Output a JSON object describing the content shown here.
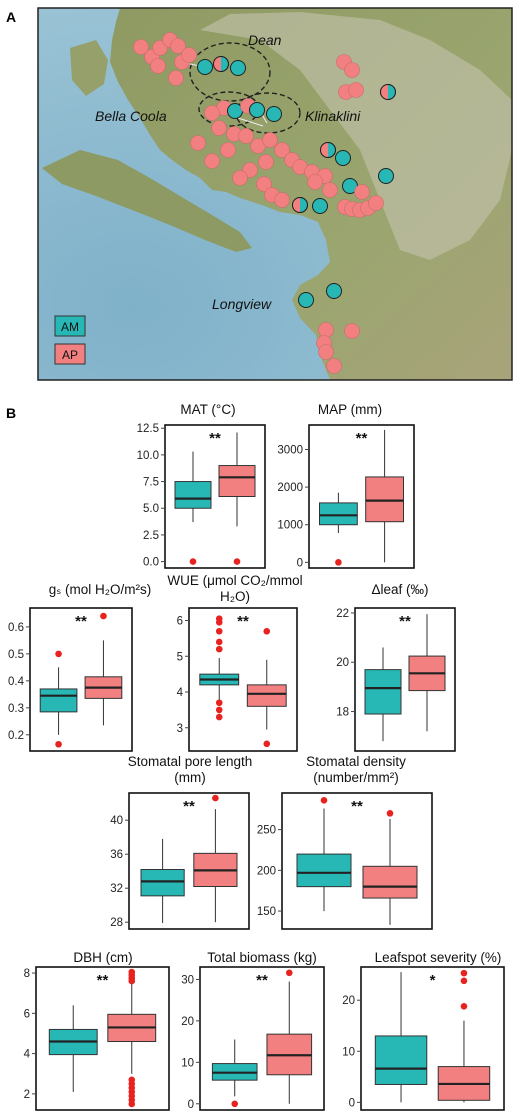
{
  "panel_a": {
    "label": "A",
    "regions": [
      "Dean",
      "Bella Coola",
      "Klinaklini",
      "Longview"
    ],
    "legend": [
      {
        "label": "AM",
        "color": "#27b8b6"
      },
      {
        "label": "AP",
        "color": "#f28080"
      }
    ]
  },
  "panel_b": {
    "label": "B"
  },
  "colors": {
    "am": "#27b8b6",
    "ap": "#f28080",
    "outlier": "#e8231f",
    "ocean": "#86b7cd",
    "land": "#8f9a63"
  },
  "chart_data": [
    {
      "type": "box",
      "title": "MAT (°C)",
      "significance": "**",
      "ylim": [
        -0.6,
        12.8
      ],
      "yticks": [
        0.0,
        2.5,
        5.0,
        7.5,
        10.0,
        12.5
      ],
      "ytick_labels": [
        "0.0",
        "2.5",
        "5.0",
        "7.5",
        "10.0",
        "12.5"
      ],
      "series": [
        {
          "name": "AM",
          "whisker_low": 3.7,
          "q1": 5.0,
          "median": 5.9,
          "q3": 7.5,
          "whisker_high": 10.3,
          "outliers": [
            0.0
          ]
        },
        {
          "name": "AP",
          "whisker_low": 3.3,
          "q1": 6.1,
          "median": 7.9,
          "q3": 9.0,
          "whisker_high": 12.1,
          "outliers": [
            0.0
          ]
        }
      ]
    },
    {
      "type": "box",
      "title": "MAP (mm)",
      "significance": "**",
      "ylim": [
        -150,
        3650
      ],
      "yticks": [
        0,
        1000,
        2000,
        3000
      ],
      "ytick_labels": [
        "0",
        "1000",
        "2000",
        "3000"
      ],
      "series": [
        {
          "name": "AM",
          "whisker_low": 780,
          "q1": 1000,
          "median": 1250,
          "q3": 1580,
          "whisker_high": 1850,
          "outliers": [
            0
          ]
        },
        {
          "name": "AP",
          "whisker_low": 0,
          "q1": 1080,
          "median": 1640,
          "q3": 2270,
          "whisker_high": 3520,
          "outliers": []
        }
      ]
    },
    {
      "type": "box",
      "title": "gₛ (mol H₂O/m²s)",
      "significance": "**",
      "ylim": [
        0.14,
        0.67
      ],
      "yticks": [
        0.2,
        0.3,
        0.4,
        0.5,
        0.6
      ],
      "ytick_labels": [
        "0.2",
        "0.3",
        "0.4",
        "0.5",
        "0.6"
      ],
      "series": [
        {
          "name": "AM",
          "whisker_low": 0.2,
          "q1": 0.285,
          "median": 0.345,
          "q3": 0.37,
          "whisker_high": 0.45,
          "outliers": [
            0.165,
            0.5
          ]
        },
        {
          "name": "AP",
          "whisker_low": 0.235,
          "q1": 0.335,
          "median": 0.375,
          "q3": 0.415,
          "whisker_high": 0.55,
          "outliers": [
            0.64
          ]
        }
      ]
    },
    {
      "type": "box",
      "title": "WUE (μmol CO₂/mmol H₂O)",
      "significance": "**",
      "ylim": [
        2.35,
        6.35
      ],
      "yticks": [
        3,
        4,
        5,
        6
      ],
      "ytick_labels": [
        "3",
        "4",
        "5",
        "6"
      ],
      "series": [
        {
          "name": "AM",
          "whisker_low": 3.75,
          "q1": 4.2,
          "median": 4.35,
          "q3": 4.5,
          "whisker_high": 4.95,
          "outliers": [
            3.3,
            3.5,
            3.7,
            5.2,
            5.4,
            5.7,
            5.95,
            6.05
          ]
        },
        {
          "name": "AP",
          "whisker_low": 2.95,
          "q1": 3.6,
          "median": 3.95,
          "q3": 4.2,
          "whisker_high": 4.9,
          "outliers": [
            2.55,
            5.7
          ]
        }
      ]
    },
    {
      "type": "box",
      "title": "Δleaf (‰)",
      "significance": "**",
      "ylim": [
        16.4,
        22.2
      ],
      "yticks": [
        18,
        20,
        22
      ],
      "ytick_labels": [
        "18",
        "20",
        "22"
      ],
      "series": [
        {
          "name": "AM",
          "whisker_low": 16.8,
          "q1": 17.9,
          "median": 18.95,
          "q3": 19.7,
          "whisker_high": 20.6,
          "outliers": []
        },
        {
          "name": "AP",
          "whisker_low": 17.2,
          "q1": 18.85,
          "median": 19.55,
          "q3": 20.25,
          "whisker_high": 21.95,
          "outliers": []
        }
      ]
    },
    {
      "type": "box",
      "title": "Stomatal pore length (mm)",
      "significance": "**",
      "ylim": [
        27.2,
        43.2
      ],
      "yticks": [
        28,
        32,
        36,
        40
      ],
      "ytick_labels": [
        "28",
        "32",
        "36",
        "40"
      ],
      "series": [
        {
          "name": "AM",
          "whisker_low": 27.9,
          "q1": 31.1,
          "median": 32.8,
          "q3": 34.2,
          "whisker_high": 37.8,
          "outliers": []
        },
        {
          "name": "AP",
          "whisker_low": 28.0,
          "q1": 32.2,
          "median": 34.1,
          "q3": 36.1,
          "whisker_high": 41.3,
          "outliers": [
            42.6
          ]
        }
      ]
    },
    {
      "type": "box",
      "title": "Stomatal density (number/mm²)",
      "significance": "**",
      "ylim": [
        128,
        295
      ],
      "yticks": [
        150,
        200,
        250
      ],
      "ytick_labels": [
        "150",
        "200",
        "250"
      ],
      "series": [
        {
          "name": "AM",
          "whisker_low": 150,
          "q1": 180,
          "median": 197,
          "q3": 220,
          "whisker_high": 276,
          "outliers": [
            286
          ]
        },
        {
          "name": "AP",
          "whisker_low": 133,
          "q1": 166,
          "median": 180,
          "q3": 205,
          "whisker_high": 263,
          "outliers": [
            270
          ]
        }
      ]
    },
    {
      "type": "box",
      "title": "DBH (cm)",
      "significance": "**",
      "ylim": [
        1.2,
        8.3
      ],
      "yticks": [
        2,
        4,
        6,
        8
      ],
      "ytick_labels": [
        "2",
        "4",
        "6",
        "8"
      ],
      "series": [
        {
          "name": "AM",
          "whisker_low": 2.1,
          "q1": 3.95,
          "median": 4.6,
          "q3": 5.2,
          "whisker_high": 6.4,
          "outliers": []
        },
        {
          "name": "AP",
          "whisker_low": 3.0,
          "q1": 4.6,
          "median": 5.3,
          "q3": 5.95,
          "whisker_high": 7.5,
          "outliers": [
            1.5,
            1.7,
            1.9,
            2.1,
            2.3,
            2.5,
            2.7,
            7.6,
            7.75,
            7.9,
            8.05
          ]
        }
      ]
    },
    {
      "type": "box",
      "title": "Total biomass (kg)",
      "significance": "**",
      "ylim": [
        -1.5,
        33
      ],
      "yticks": [
        0,
        10,
        20,
        30
      ],
      "ytick_labels": [
        "0",
        "10",
        "20",
        "30"
      ],
      "series": [
        {
          "name": "AM",
          "whisker_low": 1.8,
          "q1": 5.7,
          "median": 7.5,
          "q3": 9.7,
          "whisker_high": 15.5,
          "outliers": [
            0
          ]
        },
        {
          "name": "AP",
          "whisker_low": 0,
          "q1": 7.0,
          "median": 11.7,
          "q3": 16.8,
          "whisker_high": 29.5,
          "outliers": [
            31.6
          ]
        }
      ]
    },
    {
      "type": "box",
      "title": "Leafspot severity (%)",
      "significance": "*",
      "ylim": [
        -1.5,
        26.5
      ],
      "yticks": [
        0,
        10,
        20
      ],
      "ytick_labels": [
        "0",
        "10",
        "20"
      ],
      "series": [
        {
          "name": "AM",
          "whisker_low": 0,
          "q1": 3.5,
          "median": 6.6,
          "q3": 13.0,
          "whisker_high": 25.5,
          "outliers": []
        },
        {
          "name": "AP",
          "whisker_low": 0,
          "q1": 0.4,
          "median": 3.6,
          "q3": 7.0,
          "whisker_high": 16.0,
          "outliers": [
            18.8,
            23.8,
            25.3
          ]
        }
      ]
    }
  ]
}
